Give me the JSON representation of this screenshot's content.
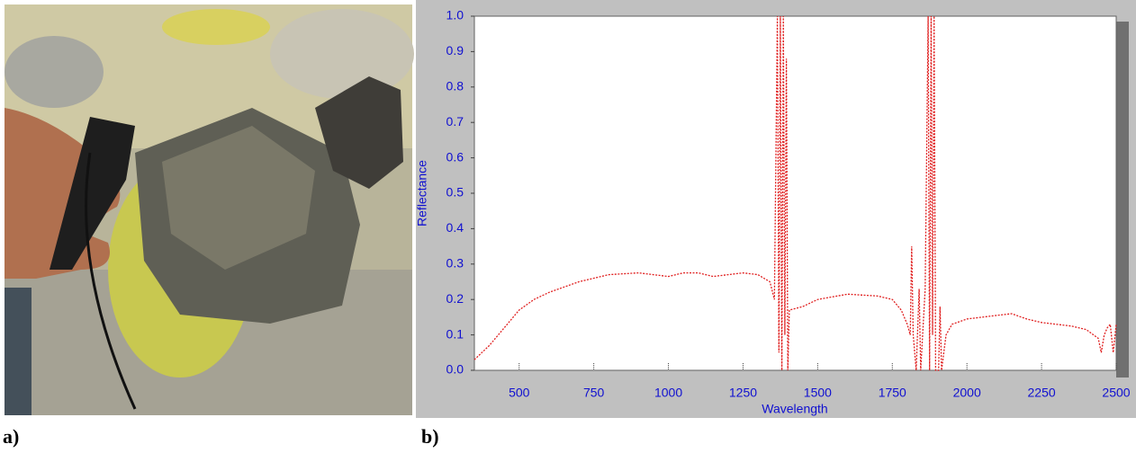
{
  "panel_labels": [
    "a)",
    "b)"
  ],
  "chart_data": {
    "type": "line",
    "x_label": "Wavelength",
    "y_label": "Reflectance",
    "x": [
      350,
      400,
      450,
      500,
      550,
      600,
      700,
      800,
      900,
      950,
      1000,
      1050,
      1100,
      1150,
      1200,
      1250,
      1300,
      1340,
      1355,
      1365,
      1370,
      1375,
      1380,
      1385,
      1390,
      1395,
      1400,
      1405,
      1450,
      1500,
      1600,
      1700,
      1750,
      1780,
      1800,
      1810,
      1815,
      1820,
      1830,
      1840,
      1845,
      1860,
      1870,
      1875,
      1880,
      1885,
      1890,
      1895,
      1905,
      1910,
      1915,
      1930,
      1950,
      2000,
      2100,
      2150,
      2200,
      2250,
      2300,
      2350,
      2400,
      2440,
      2450,
      2460,
      2470,
      2480,
      2490,
      2500
    ],
    "series": [
      {
        "color": "#e02020",
        "values": [
          0.03,
          0.07,
          0.12,
          0.17,
          0.2,
          0.22,
          0.25,
          0.27,
          0.275,
          0.27,
          0.265,
          0.275,
          0.275,
          0.265,
          0.27,
          0.275,
          0.27,
          0.25,
          0.2,
          1.0,
          0.05,
          1.0,
          0.0,
          1.0,
          0.1,
          0.88,
          0.0,
          0.17,
          0.18,
          0.2,
          0.215,
          0.21,
          0.2,
          0.17,
          0.13,
          0.1,
          0.35,
          0.1,
          0.0,
          0.23,
          0.0,
          0.23,
          1.0,
          0.0,
          1.0,
          0.1,
          1.0,
          0.0,
          0.0,
          0.18,
          0.0,
          0.1,
          0.13,
          0.145,
          0.155,
          0.16,
          0.145,
          0.135,
          0.13,
          0.125,
          0.115,
          0.09,
          0.05,
          0.1,
          0.12,
          0.13,
          0.05,
          0.13
        ]
      }
    ],
    "xlim": [
      350,
      2500
    ],
    "ylim": [
      0,
      1
    ],
    "xticks": [
      500,
      750,
      1000,
      1250,
      1500,
      1750,
      2000,
      2250,
      2500
    ],
    "yticks": [
      {
        "value": 0,
        "label": "0.0"
      },
      0.1,
      0.2,
      0.3,
      0.4,
      0.5,
      0.6,
      0.7,
      0.8,
      0.9,
      {
        "value": 1,
        "label": "1.0"
      }
    ],
    "grid": false
  }
}
